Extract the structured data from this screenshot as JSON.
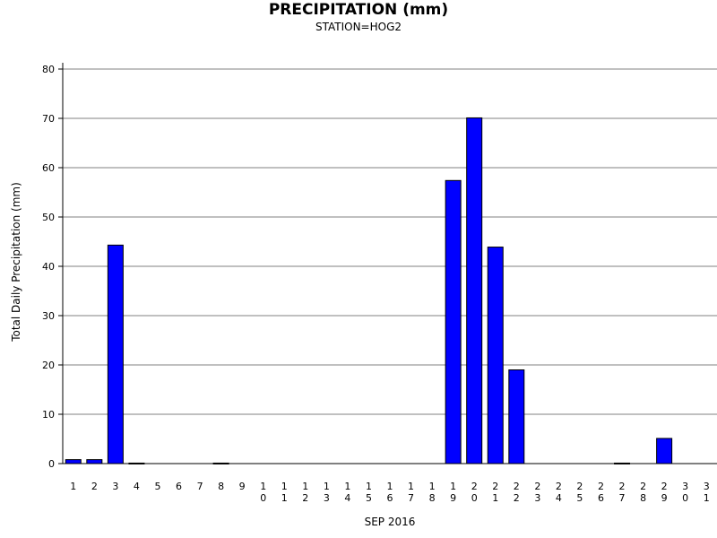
{
  "chart_data": {
    "type": "bar",
    "title": "PRECIPITATION (mm)",
    "subtitle": "STATION=HOG2",
    "xlabel": "SEP 2016",
    "ylabel": "Total Daily Precipitation (mm)",
    "ylim": [
      0,
      80
    ],
    "yticks": [
      0,
      10,
      20,
      30,
      40,
      50,
      60,
      70,
      80
    ],
    "grid": true,
    "bar_color": "#0000ff",
    "categories": [
      "1",
      "2",
      "3",
      "4",
      "5",
      "6",
      "7",
      "8",
      "9",
      "10",
      "11",
      "12",
      "13",
      "14",
      "15",
      "16",
      "17",
      "18",
      "19",
      "20",
      "21",
      "22",
      "23",
      "24",
      "25",
      "26",
      "27",
      "28",
      "29",
      "30",
      "31"
    ],
    "values": [
      0.8,
      0.8,
      44.3,
      0.1,
      0,
      0,
      0,
      0.1,
      0,
      0,
      0,
      0,
      0,
      0,
      0,
      0,
      0,
      0,
      57.4,
      70.1,
      43.9,
      19.0,
      0,
      0,
      0,
      0,
      0.1,
      0,
      5.1,
      0,
      0
    ]
  }
}
